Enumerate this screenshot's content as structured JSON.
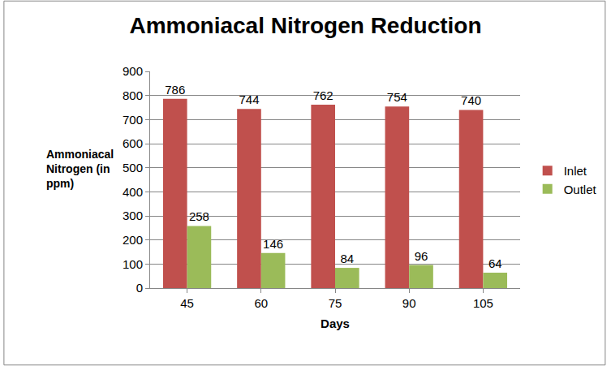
{
  "chart_data": {
    "type": "bar",
    "title": "Ammoniacal Nitrogen Reduction",
    "x_label": "Days",
    "y_label": "Ammoniacal Nitrogen (in ppm)",
    "categories": [
      "45",
      "60",
      "75",
      "90",
      "105"
    ],
    "series": [
      {
        "name": "Inlet",
        "color": "#c0504d",
        "values": [
          786,
          744,
          762,
          754,
          740
        ]
      },
      {
        "name": "Outlet",
        "color": "#9bbb59",
        "values": [
          258,
          146,
          84,
          96,
          64
        ]
      }
    ],
    "ylim": [
      0,
      900
    ],
    "yticks": [
      0,
      100,
      200,
      300,
      400,
      500,
      600,
      700,
      800,
      900
    ],
    "grid": true,
    "legend": "right",
    "data_labels": true
  }
}
